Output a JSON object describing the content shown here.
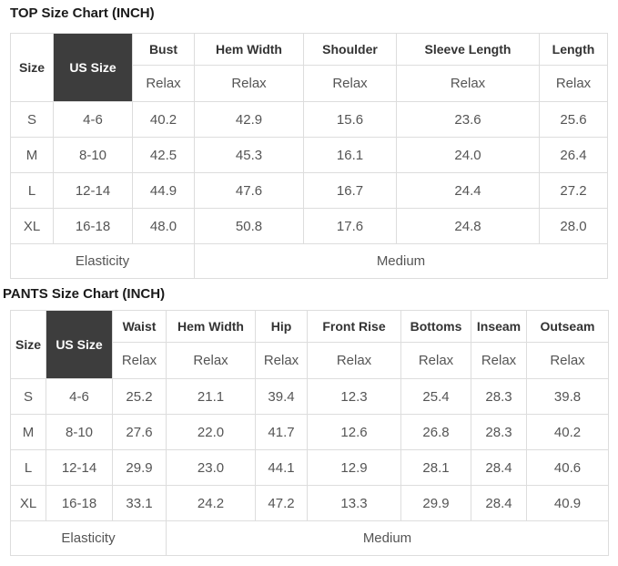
{
  "page": {
    "unit_note": "INCH"
  },
  "colors": {
    "border": "#dddddd",
    "header_text": "#333333",
    "data_text": "#555555",
    "us_size_cell_bg": "#3d3d3d",
    "us_size_cell_text": "#ffffff",
    "title_text": "#1a1a1a"
  },
  "chart_data": [
    {
      "type": "table",
      "title": "TOP Size Chart (INCH)",
      "columns": [
        "Size",
        "US Size",
        "Bust",
        "Hem Width",
        "Shoulder",
        "Sleeve Length",
        "Length"
      ],
      "fit_row": [
        "Relax",
        "Relax",
        "Relax",
        "Relax",
        "Relax"
      ],
      "rows": [
        [
          "S",
          "4-6",
          "40.2",
          "42.9",
          "15.6",
          "23.6",
          "25.6"
        ],
        [
          "M",
          "8-10",
          "42.5",
          "45.3",
          "16.1",
          "24.0",
          "26.4"
        ],
        [
          "L",
          "12-14",
          "44.9",
          "47.6",
          "16.7",
          "24.4",
          "27.2"
        ],
        [
          "XL",
          "16-18",
          "48.0",
          "50.8",
          "17.6",
          "24.8",
          "28.0"
        ]
      ],
      "footer": {
        "label": "Elasticity",
        "value": "Medium"
      }
    },
    {
      "type": "table",
      "title": "PANTS Size Chart (INCH)",
      "columns": [
        "Size",
        "US Size",
        "Waist",
        "Hem Width",
        "Hip",
        "Front Rise",
        "Bottoms",
        "Inseam",
        "Outseam"
      ],
      "fit_row": [
        "Relax",
        "Relax",
        "Relax",
        "Relax",
        "Relax",
        "Relax",
        "Relax"
      ],
      "rows": [
        [
          "S",
          "4-6",
          "25.2",
          "21.1",
          "39.4",
          "12.3",
          "25.4",
          "28.3",
          "39.8"
        ],
        [
          "M",
          "8-10",
          "27.6",
          "22.0",
          "41.7",
          "12.6",
          "26.8",
          "28.3",
          "40.2"
        ],
        [
          "L",
          "12-14",
          "29.9",
          "23.0",
          "44.1",
          "12.9",
          "28.1",
          "28.4",
          "40.6"
        ],
        [
          "XL",
          "16-18",
          "33.1",
          "24.2",
          "47.2",
          "13.3",
          "29.9",
          "28.4",
          "40.9"
        ]
      ],
      "footer": {
        "label": "Elasticity",
        "value": "Medium"
      }
    }
  ]
}
